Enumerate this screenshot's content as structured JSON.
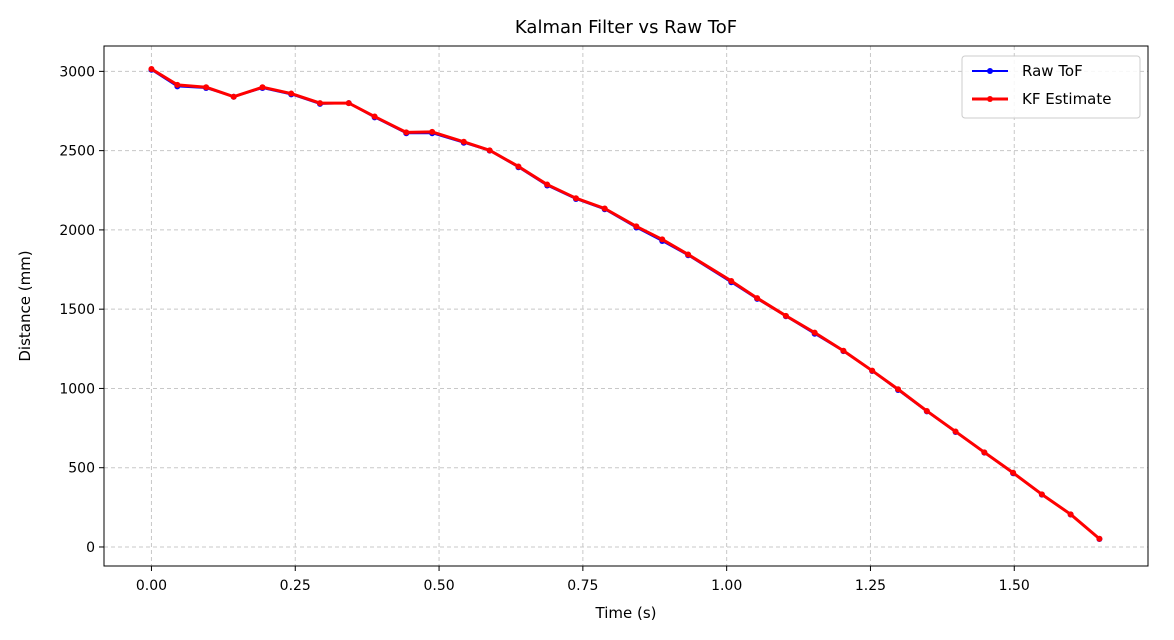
{
  "chart_data": {
    "type": "line",
    "title": "Kalman Filter vs Raw ToF",
    "xlabel": "Time (s)",
    "ylabel": "Distance (mm)",
    "xlim": [
      -0.0825,
      1.7325
    ],
    "ylim": [
      -120,
      3160
    ],
    "xticks": [
      0.0,
      0.25,
      0.5,
      0.75,
      1.0,
      1.25,
      1.5
    ],
    "xtick_labels": [
      "0.00",
      "0.25",
      "0.50",
      "0.75",
      "1.00",
      "1.25",
      "1.50"
    ],
    "yticks": [
      0,
      500,
      1000,
      1500,
      2000,
      2500,
      3000
    ],
    "ytick_labels": [
      "0",
      "500",
      "1000",
      "1500",
      "2000",
      "2500",
      "3000"
    ],
    "grid": true,
    "legend_position": "top-right",
    "x": [
      0.0,
      0.045,
      0.095,
      0.143,
      0.193,
      0.243,
      0.293,
      0.343,
      0.388,
      0.443,
      0.488,
      0.543,
      0.588,
      0.638,
      0.688,
      0.738,
      0.788,
      0.843,
      0.888,
      0.933,
      1.008,
      1.053,
      1.103,
      1.153,
      1.203,
      1.253,
      1.298,
      1.348,
      1.398,
      1.448,
      1.498,
      1.548,
      1.598,
      1.648
    ],
    "series": [
      {
        "name": "Raw ToF",
        "color": "#0000ff",
        "values": [
          3010,
          2905,
          2895,
          2840,
          2895,
          2855,
          2795,
          2800,
          2710,
          2610,
          2610,
          2550,
          2500,
          2395,
          2280,
          2195,
          2130,
          2015,
          1930,
          1840,
          1670,
          1565,
          1455,
          1345,
          1235,
          1110,
          990,
          855,
          725,
          595,
          465,
          330,
          205,
          50
        ]
      },
      {
        "name": "KF Estimate",
        "color": "#ff0000",
        "values": [
          3015,
          2915,
          2900,
          2840,
          2900,
          2860,
          2800,
          2800,
          2715,
          2615,
          2618,
          2556,
          2502,
          2400,
          2286,
          2200,
          2135,
          2022,
          1940,
          1845,
          1678,
          1570,
          1458,
          1352,
          1238,
          1112,
          995,
          858,
          728,
          597,
          468,
          332,
          206,
          52
        ]
      }
    ]
  }
}
